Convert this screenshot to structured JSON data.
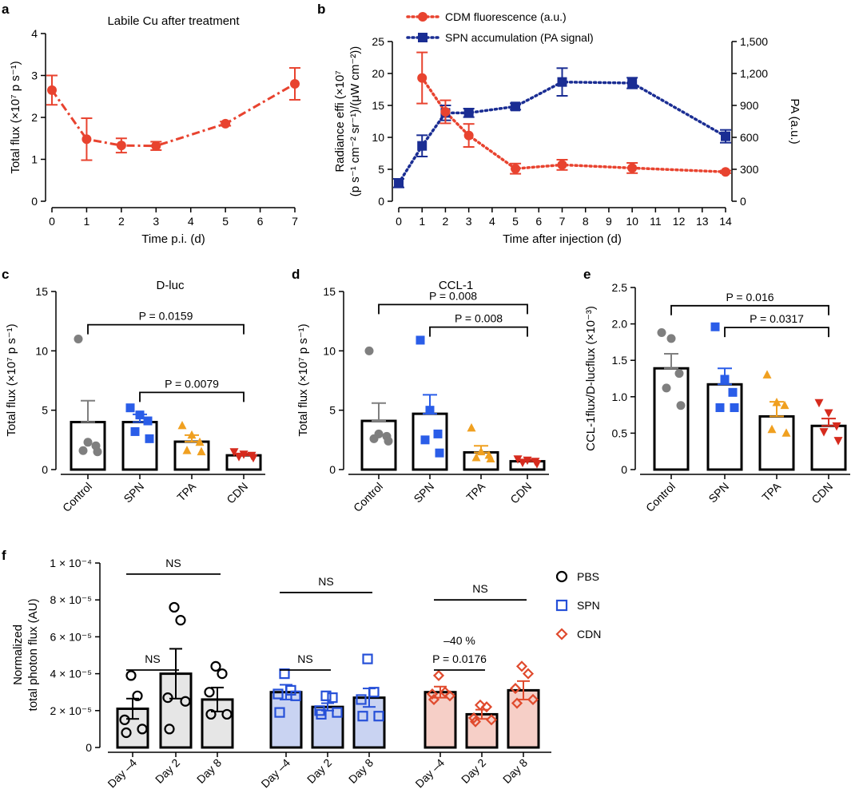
{
  "figure": {
    "panels": [
      "a",
      "b",
      "c",
      "d",
      "e",
      "f"
    ]
  },
  "colors": {
    "red": "#e8432f",
    "blue": "#1f3aa6",
    "navy": "#1a2d93",
    "grey": "#7f7f7f",
    "scatter_blue": "#2a5de8",
    "orange": "#f0a020",
    "darkred": "#d62b1e",
    "pbs": "#000000",
    "spn": "#2650d8",
    "cdn": "#e04a2d"
  },
  "chart_data": [
    {
      "id": "a",
      "type": "line",
      "title": "Labile Cu after treatment",
      "xlabel": "Time p.i. (d)",
      "ylabel": "Total flux (×10⁷ p s⁻¹)",
      "xlim": [
        0,
        7
      ],
      "ylim": [
        0,
        4
      ],
      "xticks": [
        "0",
        "1",
        "2",
        "3",
        "4",
        "5",
        "6",
        "7"
      ],
      "yticks": [
        "0",
        "1",
        "2",
        "3",
        "4"
      ],
      "series": [
        {
          "name": "Labile Cu",
          "x": [
            0,
            1,
            2,
            3,
            5,
            7
          ],
          "y": [
            2.65,
            1.48,
            1.33,
            1.32,
            1.85,
            2.8
          ],
          "err": [
            0.35,
            0.5,
            0.17,
            0.1,
            0.05,
            0.38
          ]
        }
      ]
    },
    {
      "id": "b",
      "type": "line",
      "xlabel": "Time after injection (d)",
      "ylabel": "Radiance effi (×10⁷ (p s⁻¹ cm⁻² sr⁻¹)/(μW cm⁻²))",
      "y2label": "PA (a.u.)",
      "xlim": [
        0,
        14
      ],
      "ylim": [
        0,
        25
      ],
      "y2lim": [
        0,
        1500
      ],
      "xticks": [
        "0",
        "1",
        "2",
        "3",
        "4",
        "5",
        "6",
        "7",
        "8",
        "9",
        "10",
        "11",
        "12",
        "13",
        "14"
      ],
      "yticks": [
        "0",
        "5",
        "10",
        "15",
        "20",
        "25"
      ],
      "y2ticks": [
        "0",
        "300",
        "600",
        "900",
        "1,200",
        "1,500"
      ],
      "series": [
        {
          "name": "CDM fluorescence (a.u.)",
          "axis": "left",
          "x": [
            1,
            2,
            3,
            5,
            7,
            10,
            14
          ],
          "y": [
            19.3,
            14,
            10.3,
            5.1,
            5.7,
            5.2,
            4.6
          ],
          "err": [
            4,
            1.8,
            1.8,
            0.8,
            0.8,
            0.8,
            0.2
          ]
        },
        {
          "name": "SPN accumulation (PA signal)",
          "axis": "right",
          "x": [
            0,
            1,
            2,
            3,
            5,
            7,
            10,
            14
          ],
          "y": [
            170,
            520,
            830,
            830,
            890,
            1120,
            1110,
            610
          ],
          "err": [
            40,
            100,
            70,
            40,
            30,
            130,
            50,
            60
          ]
        }
      ]
    },
    {
      "id": "c",
      "type": "bar",
      "title": "D-luc",
      "ylabel": "Total flux (×10⁷ p s⁻¹)",
      "ylim": [
        0,
        15
      ],
      "yticks": [
        "0",
        "5",
        "10",
        "15"
      ],
      "categories": [
        "Control",
        "SPN",
        "TPA",
        "CDN"
      ],
      "values": [
        4.0,
        4.0,
        2.35,
        1.2
      ],
      "err": [
        1.8,
        0.65,
        0.55,
        0.15
      ],
      "points": [
        [
          11,
          2.3,
          2.0,
          1.6,
          1.5
        ],
        [
          5.2,
          4.6,
          4.1,
          3.2,
          2.6
        ],
        [
          3.7,
          2.9,
          2.3,
          1.6,
          1.5
        ],
        [
          1.5,
          1.3,
          1.2,
          1.1,
          1.0
        ]
      ],
      "comparisons": [
        {
          "from": "Control",
          "to": "CDN",
          "label": "P = 0.0159",
          "y": 12.2
        },
        {
          "from": "SPN",
          "to": "CDN",
          "label": "P = 0.0079",
          "y": 6.5
        }
      ]
    },
    {
      "id": "d",
      "type": "bar",
      "title": "CCL-1",
      "ylabel": "Total flux (×10⁷ p s⁻¹)",
      "ylim": [
        0,
        15
      ],
      "yticks": [
        "0",
        "5",
        "10",
        "15"
      ],
      "categories": [
        "Control",
        "SPN",
        "TPA",
        "CDN"
      ],
      "values": [
        4.1,
        4.7,
        1.45,
        0.7
      ],
      "err": [
        1.5,
        1.6,
        0.55,
        0.15
      ],
      "points": [
        [
          10,
          3.0,
          2.8,
          2.6,
          2.4
        ],
        [
          10.9,
          5.0,
          3.0,
          2.5,
          1.4
        ],
        [
          3.5,
          1.5,
          1.2,
          1.0,
          0.9
        ],
        [
          0.9,
          0.8,
          0.7,
          0.6,
          0.5
        ]
      ],
      "comparisons": [
        {
          "from": "Control",
          "to": "CDN",
          "label": "P = 0.008",
          "y": 13.9
        },
        {
          "from": "SPN",
          "to": "CDN",
          "label": "P = 0.008",
          "y": 12.0
        }
      ]
    },
    {
      "id": "e",
      "type": "bar",
      "ylabel": "CCL-1flux/D-lucflux (×10⁻³)",
      "ylim": [
        0,
        2.5
      ],
      "yticks": [
        "0",
        "0.5",
        "1.0",
        "1.5",
        "2.0",
        "2.5"
      ],
      "categories": [
        "Control",
        "SPN",
        "TPA",
        "CDN"
      ],
      "values": [
        1.39,
        1.17,
        0.73,
        0.6
      ],
      "err": [
        0.2,
        0.22,
        0.2,
        0.1
      ],
      "points": [
        [
          1.88,
          1.8,
          1.32,
          1.12,
          0.88
        ],
        [
          1.96,
          1.24,
          1.06,
          0.85,
          0.85
        ],
        [
          1.3,
          0.92,
          0.88,
          0.55,
          0.5
        ],
        [
          0.92,
          0.78,
          0.6,
          0.52,
          0.4
        ]
      ],
      "comparisons": [
        {
          "from": "Control",
          "to": "CDN",
          "label": "P = 0.016",
          "y": 2.25
        },
        {
          "from": "SPN",
          "to": "CDN",
          "label": "P = 0.0317",
          "y": 1.95
        }
      ]
    },
    {
      "id": "f",
      "type": "bar",
      "ylabel": "Normalized total photon flux (AU)",
      "ylim": [
        0,
        0.0001
      ],
      "yticks": [
        "0",
        "2 × 10⁻⁵",
        "4 × 10⁻⁵",
        "6 × 10⁻⁵",
        "8 × 10⁻⁵",
        "1 × 10⁻⁴"
      ],
      "legend": [
        "PBS",
        "SPN",
        "CDN"
      ],
      "groups": [
        {
          "name": "PBS",
          "categories": [
            "Day –4",
            "Day 2",
            "Day 8"
          ],
          "values": [
            2.1e-05,
            4e-05,
            2.6e-05
          ],
          "err": [
            5.5e-06,
            1.35e-05,
            6.5e-06
          ],
          "points": [
            [
              3.9e-05,
              2.8e-05,
              1.5e-05,
              1e-05,
              8e-06
            ],
            [
              7.6e-05,
              6.9e-05,
              2.7e-05,
              2.5e-05,
              1e-05
            ],
            [
              4.4e-05,
              4e-05,
              3e-05,
              1.8e-05,
              1.8e-05
            ]
          ],
          "comparisons": [
            {
              "label": "NS",
              "from": 0,
              "to": 2,
              "y": 9.4e-05
            },
            {
              "label": "NS",
              "from": 0,
              "to": 1,
              "y": 4.2e-05
            }
          ]
        },
        {
          "name": "SPN",
          "categories": [
            "Day –4",
            "Day 2",
            "Day 8"
          ],
          "values": [
            3e-05,
            2.2e-05,
            2.7e-05
          ],
          "err": [
            4e-06,
            2e-06,
            5e-06
          ],
          "points": [
            [
              4e-05,
              3.1e-05,
              2.9e-05,
              2.8e-05,
              1.9e-05
            ],
            [
              2.8e-05,
              2.7e-05,
              2e-05,
              1.9e-05,
              1.8e-05
            ],
            [
              4.8e-05,
              3e-05,
              2.6e-05,
              1.7e-05,
              1.7e-05
            ]
          ],
          "comparisons": [
            {
              "label": "NS",
              "from": 0,
              "to": 2,
              "y": 8.4e-05
            },
            {
              "label": "NS",
              "from": 0,
              "to": 1,
              "y": 4.2e-05
            }
          ]
        },
        {
          "name": "CDN",
          "categories": [
            "Day –4",
            "Day 2",
            "Day 8"
          ],
          "values": [
            3e-05,
            1.8e-05,
            3.1e-05
          ],
          "err": [
            3e-06,
            2.5e-06,
            5e-06
          ],
          "points": [
            [
              3.9e-05,
              3e-05,
              2.9e-05,
              2.8e-05,
              2.6e-05
            ],
            [
              2.3e-05,
              2.2e-05,
              1.6e-05,
              1.5e-05,
              1.4e-05
            ],
            [
              4.4e-05,
              4e-05,
              3.2e-05,
              2.6e-05,
              2.4e-05
            ]
          ],
          "comparisons": [
            {
              "label": "NS",
              "from": 0,
              "to": 2,
              "y": 8e-05
            },
            {
              "label": "–40 %",
              "label2": "P = 0.0176",
              "from": 0,
              "to": 1,
              "y": 4.2e-05
            }
          ]
        }
      ]
    }
  ]
}
